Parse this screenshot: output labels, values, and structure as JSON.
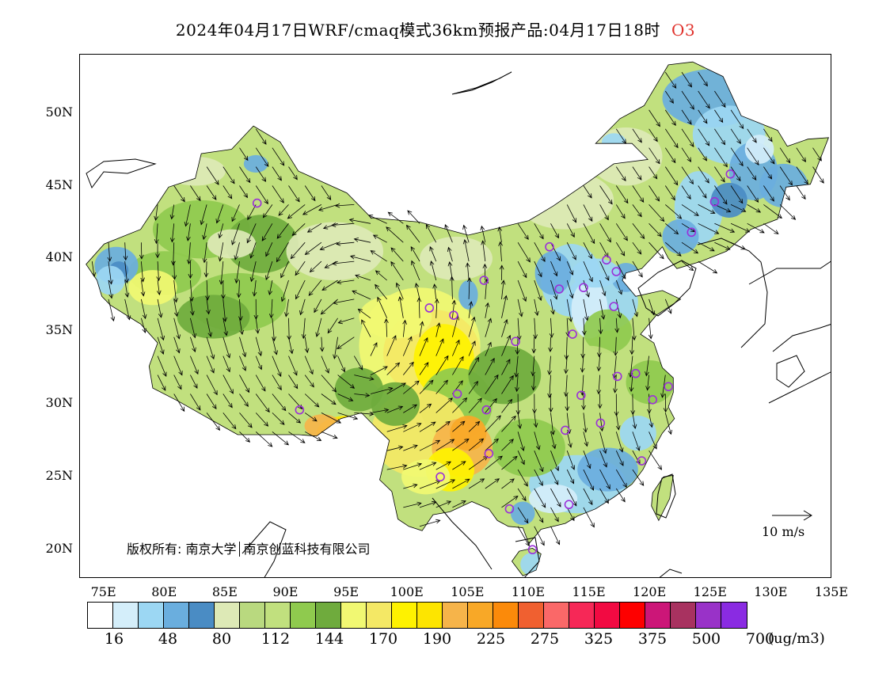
{
  "title": {
    "main": "2024年04月17日WRF/cmaq模式36km预报产品:04月17日18时",
    "variable": "O3"
  },
  "axes": {
    "lat_ticks": [
      "50N",
      "45N",
      "40N",
      "35N",
      "30N",
      "25N",
      "20N"
    ],
    "lon_ticks": [
      "75E",
      "80E",
      "85E",
      "90E",
      "95E",
      "100E",
      "105E",
      "110E",
      "115E",
      "120E",
      "125E",
      "130E",
      "135E"
    ]
  },
  "map": {
    "lon_range": [
      73,
      135
    ],
    "lat_range": [
      18,
      54
    ],
    "stations": [
      [
        87.6,
        43.8
      ],
      [
        91.1,
        29.6
      ],
      [
        101.8,
        36.6
      ],
      [
        103.8,
        36.1
      ],
      [
        106.3,
        38.5
      ],
      [
        111.7,
        40.8
      ],
      [
        104.1,
        30.7
      ],
      [
        106.5,
        29.6
      ],
      [
        106.7,
        26.6
      ],
      [
        102.7,
        25.0
      ],
      [
        108.4,
        22.8
      ],
      [
        110.3,
        20.0
      ],
      [
        108.9,
        34.3
      ],
      [
        112.5,
        37.9
      ],
      [
        114.5,
        38.0
      ],
      [
        113.6,
        34.8
      ],
      [
        116.4,
        39.9
      ],
      [
        117.2,
        39.1
      ],
      [
        117.0,
        36.7
      ],
      [
        123.4,
        41.8
      ],
      [
        125.3,
        43.9
      ],
      [
        126.6,
        45.8
      ],
      [
        118.8,
        32.1
      ],
      [
        117.3,
        31.9
      ],
      [
        121.5,
        31.2
      ],
      [
        120.2,
        30.3
      ],
      [
        115.9,
        28.7
      ],
      [
        114.3,
        30.6
      ],
      [
        113.0,
        28.2
      ],
      [
        119.3,
        26.1
      ],
      [
        113.3,
        23.1
      ]
    ]
  },
  "copyright": {
    "text": "版权所有: 南京大学",
    "text2": "南京创蓝科技有限公司"
  },
  "wind_reference": "10 m/s",
  "colorbar": {
    "colors": [
      "#ffffff",
      "#d4eefa",
      "#9cd7f3",
      "#6aaede",
      "#4a8cc4",
      "#dde9b6",
      "#b9d97f",
      "#c1e07e",
      "#8fca4e",
      "#6fab3d",
      "#f1f872",
      "#f4e865",
      "#fef200",
      "#fde500",
      "#f6b44a",
      "#f8a827",
      "#fb8a0a",
      "#f06030",
      "#fa6868",
      "#f62857",
      "#f20a42",
      "#fe0000",
      "#cc1678",
      "#a83260",
      "#9932c8",
      "#8a2be2"
    ],
    "labels": [
      "16",
      "48",
      "80",
      "112",
      "144",
      "170",
      "190",
      "225",
      "275",
      "325",
      "375",
      "500",
      "700"
    ],
    "units": "(ug/m3)"
  }
}
